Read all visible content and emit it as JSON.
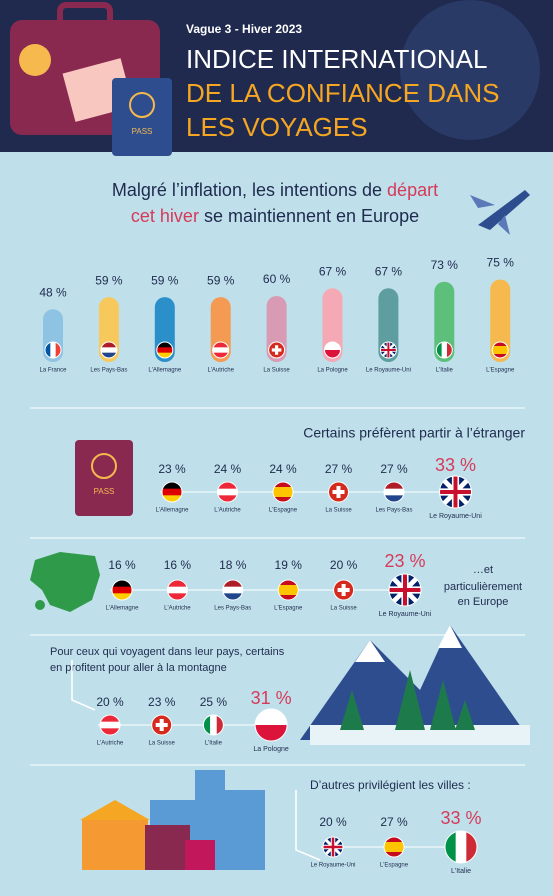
{
  "header": {
    "wave": "Vague 3 - Hiver 2023",
    "title_lines": [
      "INDICE INTERNATIONAL",
      "DE LA CONFIANCE DANS",
      "LES VOYAGES"
    ]
  },
  "intro": {
    "line1": [
      "Malgré l’inflation, les intentions de ",
      "départ"
    ],
    "line2": [
      "cet hiver",
      " se maintiennent en Europe"
    ]
  },
  "bars": {
    "categories": [
      "La France",
      "Les Pays-Bas",
      "L'Allemagne",
      "L'Autriche",
      "La Suisse",
      "La Pologne",
      "Le Royaume-Uni",
      "L'Italie",
      "L'Espagne"
    ],
    "values": [
      48,
      59,
      59,
      59,
      60,
      67,
      67,
      73,
      75
    ],
    "value_labels": [
      "48 %",
      "59 %",
      "59 %",
      "59 %",
      "60 %",
      "67 %",
      "67 %",
      "73 %",
      "75 %"
    ],
    "colors": [
      "#8fc3e3",
      "#f7c95c",
      "#2b8fc9",
      "#f59a52",
      "#d99bb3",
      "#f4a9b5",
      "#5f9ea0",
      "#5cbf7a",
      "#f5b94e"
    ]
  },
  "abroad": {
    "title": "Certains préfèrent partir à l’étranger",
    "items": [
      {
        "label": "L'Allemagne",
        "value": "23 %"
      },
      {
        "label": "L'Autriche",
        "value": "24 %"
      },
      {
        "label": "L'Espagne",
        "value": "24 %"
      },
      {
        "label": "La Suisse",
        "value": "27 %"
      },
      {
        "label": "Les Pays-Bas",
        "value": "27 %"
      },
      {
        "label": "Le Royaume-Uni",
        "value": "33 %"
      }
    ]
  },
  "europe": {
    "note_lines": [
      "…et",
      "particulièrement",
      "en Europe"
    ],
    "items": [
      {
        "label": "L'Allemagne",
        "value": "16 %"
      },
      {
        "label": "L'Autriche",
        "value": "16 %"
      },
      {
        "label": "Les Pays-Bas",
        "value": "18 %"
      },
      {
        "label": "L'Espagne",
        "value": "19 %"
      },
      {
        "label": "La Suisse",
        "value": "20 %"
      },
      {
        "label": "Le Royaume-Uni",
        "value": "23 %"
      }
    ]
  },
  "mountain": {
    "text_lines": [
      "Pour ceux qui voyagent dans leur pays, certains",
      "en profitent pour aller à la montagne"
    ],
    "items": [
      {
        "label": "L'Autriche",
        "value": "20 %"
      },
      {
        "label": "La Suisse",
        "value": "23 %"
      },
      {
        "label": "L'Italie",
        "value": "25 %"
      },
      {
        "label": "La Pologne",
        "value": "31 %"
      }
    ]
  },
  "cities": {
    "title": "D’autres privilégient les villes :",
    "items": [
      {
        "label": "Le Royaume-Uni",
        "value": "20 %"
      },
      {
        "label": "L'Espagne",
        "value": "27 %"
      },
      {
        "label": "L'Italie",
        "value": "33 %"
      }
    ]
  }
}
